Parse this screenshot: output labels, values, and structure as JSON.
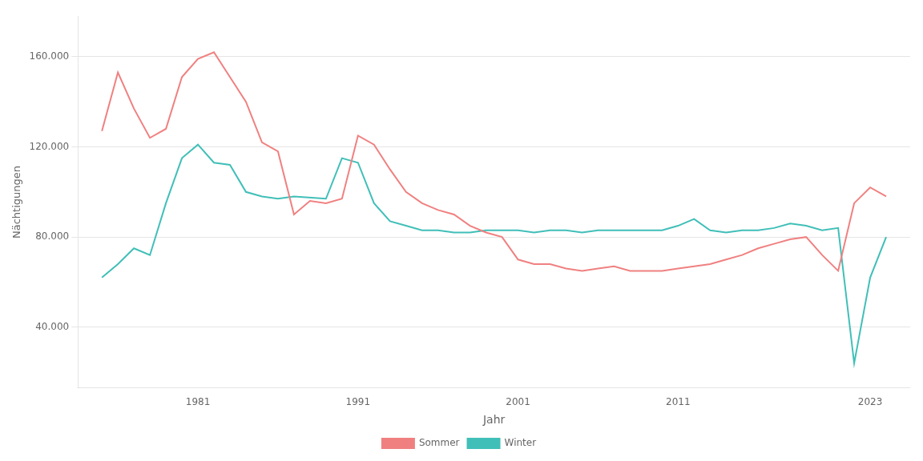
{
  "chart_data": {
    "type": "line",
    "x_label": "Jahr",
    "y_label": "Nächtigungen",
    "series": [
      {
        "name": "Sommer",
        "color": "#F08080",
        "x": [
          1975,
          1976,
          1977,
          1978,
          1979,
          1980,
          1981,
          1982,
          1983,
          1984,
          1985,
          1986,
          1987,
          1988,
          1989,
          1990,
          1991,
          1992,
          1993,
          1994,
          1995,
          1996,
          1997,
          1998,
          1999,
          2000,
          2001,
          2002,
          2003,
          2004,
          2005,
          2006,
          2007,
          2008,
          2009,
          2010,
          2011,
          2012,
          2013,
          2014,
          2015,
          2016,
          2017,
          2018,
          2019,
          2020,
          2021,
          2022,
          2023,
          2024
        ],
        "values": [
          127000,
          153000,
          137000,
          124000,
          128000,
          151000,
          159000,
          162000,
          151000,
          140000,
          122000,
          118000,
          90000,
          96000,
          95000,
          97000,
          125000,
          121000,
          110000,
          100000,
          95000,
          92000,
          90000,
          85000,
          82000,
          80000,
          70000,
          68000,
          68000,
          66000,
          65000,
          66000,
          67000,
          65000,
          65000,
          65000,
          66000,
          67000,
          68000,
          70000,
          72000,
          75000,
          77000,
          79000,
          80000,
          72000,
          65000,
          95000,
          102000,
          98000
        ]
      },
      {
        "name": "Winter",
        "color": "#40BFB8",
        "x": [
          1975,
          1976,
          1977,
          1978,
          1979,
          1980,
          1981,
          1982,
          1983,
          1984,
          1985,
          1986,
          1987,
          1989,
          1990,
          1991,
          1992,
          1993,
          1994,
          1995,
          1996,
          1997,
          1998,
          1999,
          2000,
          2001,
          2002,
          2003,
          2004,
          2005,
          2006,
          2007,
          2008,
          2009,
          2010,
          2011,
          2012,
          2013,
          2014,
          2015,
          2016,
          2017,
          2018,
          2019,
          2020,
          2021,
          2022,
          2023,
          2024
        ],
        "values": [
          62000,
          68000,
          75000,
          72000,
          95000,
          115000,
          121000,
          113000,
          112000,
          100000,
          98000,
          97000,
          98000,
          97000,
          115000,
          113000,
          95000,
          87000,
          85000,
          83000,
          83000,
          82000,
          82000,
          83000,
          83000,
          83000,
          82000,
          83000,
          83000,
          82000,
          83000,
          83000,
          83000,
          83000,
          83000,
          85000,
          88000,
          83000,
          82000,
          83000,
          83000,
          84000,
          86000,
          85000,
          83000,
          84000,
          24000,
          62000,
          80000
        ]
      }
    ],
    "xlim": [
      1973.5,
      2025.5
    ],
    "xticks": [
      1981,
      1991,
      2001,
      2011,
      2023
    ],
    "ylim": [
      13000,
      178000
    ],
    "yticks": [
      {
        "value": 40000,
        "label": "40.000"
      },
      {
        "value": 80000,
        "label": "80.000"
      },
      {
        "value": 120000,
        "label": "120.000"
      },
      {
        "value": 160000,
        "label": "160.000"
      }
    ],
    "grid": "y",
    "legend": "bottom"
  }
}
